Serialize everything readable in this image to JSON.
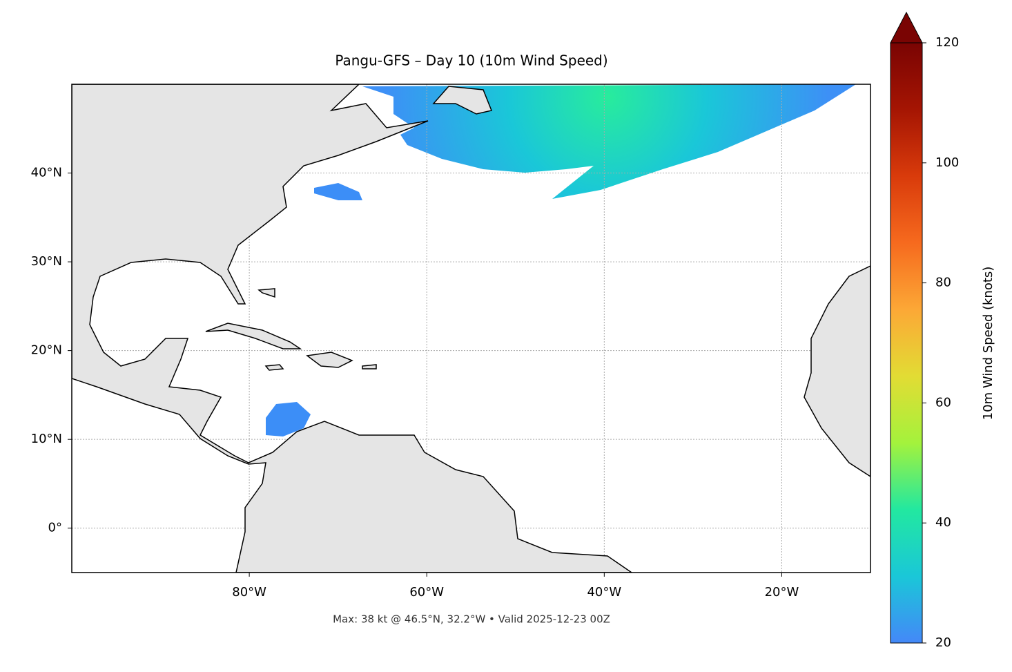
{
  "chart_data": {
    "type": "map",
    "title": "Pangu-GFS – Day 10 (10m Wind Speed)",
    "footer": "Max: 38 kt @ 46.5°N, 32.2°W • Valid 2025-12-23 00Z",
    "xlim": [
      -100,
      -10
    ],
    "ylim": [
      -5,
      50
    ],
    "xticks": [
      {
        "value": -80,
        "label": "80°W"
      },
      {
        "value": -60,
        "label": "60°W"
      },
      {
        "value": -40,
        "label": "40°W"
      },
      {
        "value": -20,
        "label": "20°W"
      }
    ],
    "yticks": [
      {
        "value": 0,
        "label": "0°"
      },
      {
        "value": 10,
        "label": "10°N"
      },
      {
        "value": 20,
        "label": "20°N"
      },
      {
        "value": 30,
        "label": "30°N"
      },
      {
        "value": 40,
        "label": "40°N"
      }
    ],
    "grid": true,
    "colorbar": {
      "label": "10m Wind Speed (knots)",
      "lim": [
        20,
        120
      ],
      "ticks": [
        20,
        40,
        60,
        80,
        100,
        120
      ],
      "colors": [
        "#4488f8",
        "#1ac7d8",
        "#22e8a0",
        "#a4f23c",
        "#e2dc34",
        "#fca836",
        "#f66a1e",
        "#d93b0b",
        "#a51503",
        "#7a0403"
      ]
    }
  }
}
